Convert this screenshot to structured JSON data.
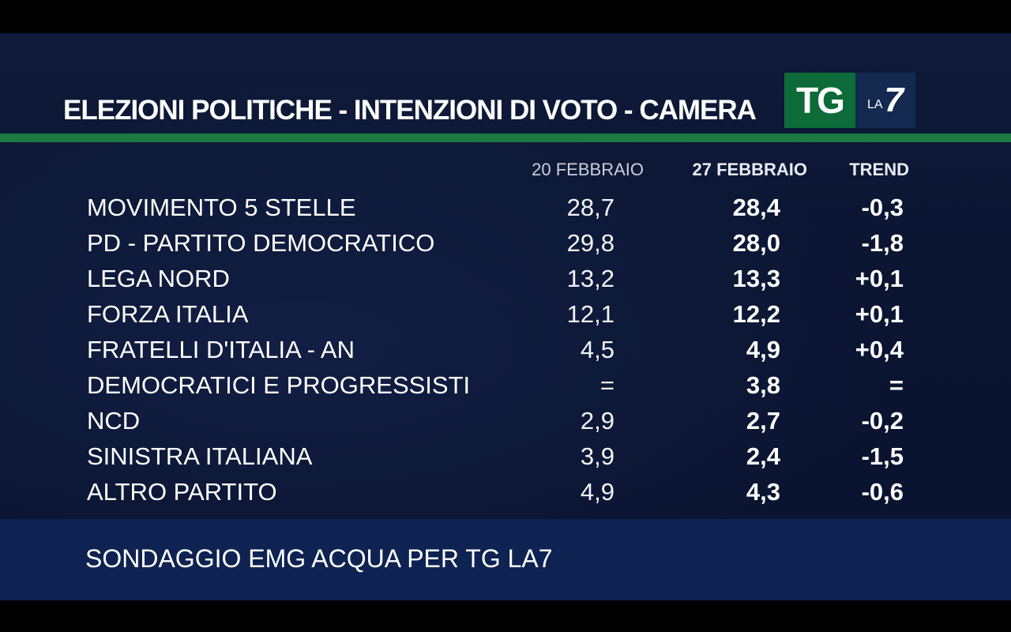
{
  "title": "ELEZIONI POLITICHE - INTENZIONI DI VOTO - CAMERA",
  "logo": {
    "tg": "TG",
    "la": "LA",
    "seven": "7"
  },
  "colors": {
    "background": "#0b1532",
    "green_line": "#1a7a3f",
    "footer_band": "#0f2352",
    "logo_green": "#0d6b3a"
  },
  "table": {
    "headers": {
      "prev": "20 FEBBRAIO",
      "curr": "27 FEBBRAIO",
      "trend": "TREND"
    },
    "rows": [
      {
        "party": "MOVIMENTO 5 STELLE",
        "prev": "28,7",
        "curr": "28,4",
        "trend": "-0,3"
      },
      {
        "party": "PD - PARTITO DEMOCRATICO",
        "prev": "29,8",
        "curr": "28,0",
        "trend": "-1,8"
      },
      {
        "party": "LEGA NORD",
        "prev": "13,2",
        "curr": "13,3",
        "trend": "+0,1"
      },
      {
        "party": "FORZA ITALIA",
        "prev": "12,1",
        "curr": "12,2",
        "trend": "+0,1"
      },
      {
        "party": "FRATELLI D'ITALIA - AN",
        "prev": "4,5",
        "curr": "4,9",
        "trend": "+0,4"
      },
      {
        "party": "DEMOCRATICI E PROGRESSISTI",
        "prev": "=",
        "curr": "3,8",
        "trend": "="
      },
      {
        "party": "NCD",
        "prev": "2,9",
        "curr": "2,7",
        "trend": "-0,2"
      },
      {
        "party": "SINISTRA ITALIANA",
        "prev": "3,9",
        "curr": "2,4",
        "trend": "-1,5"
      },
      {
        "party": "ALTRO PARTITO",
        "prev": "4,9",
        "curr": "4,3",
        "trend": "-0,6"
      }
    ]
  },
  "footer": "SONDAGGIO EMG ACQUA PER TG LA7"
}
